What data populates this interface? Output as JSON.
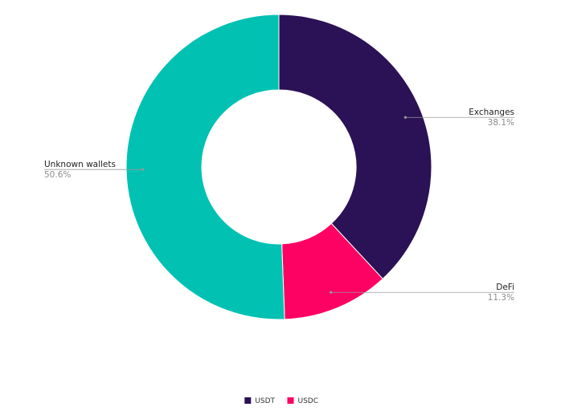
{
  "chart_data": {
    "type": "pie",
    "title": "",
    "slices": [
      {
        "label": "Exchanges",
        "value": 38.1,
        "value_label": "38.1%",
        "color": "#2b1155"
      },
      {
        "label": "DeFi",
        "value": 11.3,
        "value_label": "11.3%",
        "color": "#fd0163"
      },
      {
        "label": "Unknown wallets",
        "value": 50.6,
        "value_label": "50.6%",
        "color": "#00c1b2"
      }
    ],
    "donut": true,
    "start_angle": "12 o'clock",
    "direction": "clockwise",
    "legend_position": "bottom",
    "legend": [
      {
        "label": "USDT",
        "color": "#2b1155"
      },
      {
        "label": "USDC",
        "color": "#fd0163"
      }
    ]
  }
}
